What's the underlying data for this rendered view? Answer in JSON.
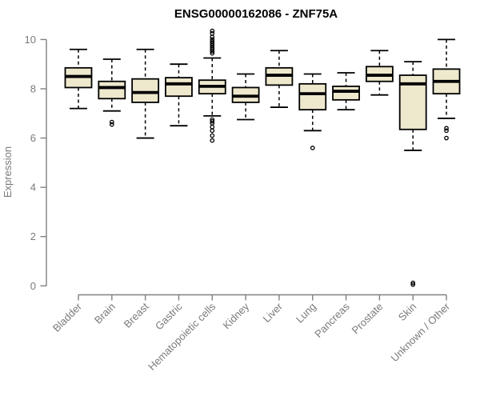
{
  "chart_data": {
    "type": "boxplot",
    "title": "ENSG00000162086 - ZNF75A",
    "ylabel": "Expression",
    "xlabel": "",
    "ylim": [
      0,
      10
    ],
    "yticks": [
      0,
      2,
      4,
      6,
      8,
      10
    ],
    "grid": false,
    "legend": "none",
    "categories": [
      "Bladder",
      "Brain",
      "Breast",
      "Gastric",
      "Hematopoietic cells",
      "Kidney",
      "Liver",
      "Lung",
      "Pancreas",
      "Prostate",
      "Skin",
      "Unknown / Other"
    ],
    "series": [
      {
        "name": "Bladder",
        "whislo": 7.2,
        "q1": 8.05,
        "med": 8.5,
        "q3": 8.85,
        "whishi": 9.6,
        "outliers": []
      },
      {
        "name": "Brain",
        "whislo": 7.1,
        "q1": 7.6,
        "med": 8.05,
        "q3": 8.3,
        "whishi": 9.2,
        "outliers": [
          6.65,
          6.55
        ]
      },
      {
        "name": "Breast",
        "whislo": 6.0,
        "q1": 7.45,
        "med": 7.85,
        "q3": 8.4,
        "whishi": 9.6,
        "outliers": []
      },
      {
        "name": "Gastric",
        "whislo": 6.5,
        "q1": 7.7,
        "med": 8.2,
        "q3": 8.45,
        "whishi": 9.0,
        "outliers": []
      },
      {
        "name": "Hematopoietic cells",
        "whislo": 6.9,
        "q1": 7.8,
        "med": 8.1,
        "q3": 8.35,
        "whishi": 9.25,
        "outliers": [
          10.35,
          10.25,
          10.1,
          10.0,
          9.92,
          9.84,
          9.76,
          9.68,
          9.6,
          9.52,
          9.44,
          6.75,
          6.68,
          6.6,
          6.45,
          6.3,
          6.1,
          5.9
        ]
      },
      {
        "name": "Kidney",
        "whislo": 6.75,
        "q1": 7.45,
        "med": 7.7,
        "q3": 8.05,
        "whishi": 8.6,
        "outliers": []
      },
      {
        "name": "Liver",
        "whislo": 7.25,
        "q1": 8.15,
        "med": 8.55,
        "q3": 8.85,
        "whishi": 9.55,
        "outliers": []
      },
      {
        "name": "Lung",
        "whislo": 6.3,
        "q1": 7.15,
        "med": 7.8,
        "q3": 8.2,
        "whishi": 8.6,
        "outliers": [
          5.6
        ]
      },
      {
        "name": "Pancreas",
        "whislo": 7.15,
        "q1": 7.55,
        "med": 7.9,
        "q3": 8.1,
        "whishi": 8.65,
        "outliers": []
      },
      {
        "name": "Prostate",
        "whislo": 7.75,
        "q1": 8.3,
        "med": 8.55,
        "q3": 8.9,
        "whishi": 9.55,
        "outliers": []
      },
      {
        "name": "Skin",
        "whislo": 5.5,
        "q1": 6.35,
        "med": 8.2,
        "q3": 8.55,
        "whishi": 9.1,
        "outliers": [
          0.12,
          0.05
        ]
      },
      {
        "name": "Unknown / Other",
        "whislo": 6.8,
        "q1": 7.8,
        "med": 8.3,
        "q3": 8.8,
        "whishi": 10.0,
        "outliers": [
          6.4,
          6.3,
          6.0
        ]
      }
    ],
    "colors": {
      "box_fill": "#EEE8CD",
      "box_stroke": "#000000",
      "median": "#000000",
      "whisker": "#000000",
      "outlier": "#000000",
      "axis": "#808080",
      "tick_label": "#7a7a7a",
      "title": "#000000"
    }
  }
}
